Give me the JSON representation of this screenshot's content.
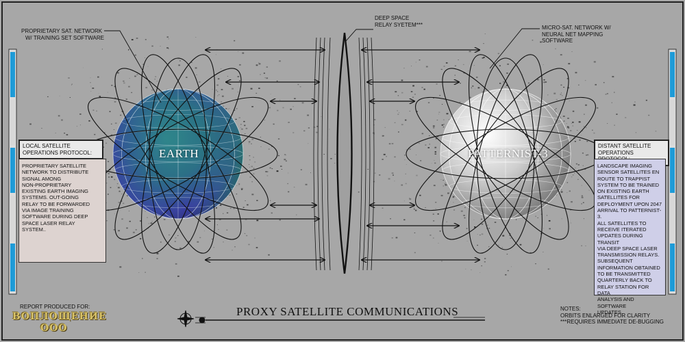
{
  "labels": {
    "proprietary_network": [
      "PROPRIETARY SAT. NETWORK",
      "W/ TRAINING SET SOFTWARE"
    ],
    "relay_system": [
      "DEEP SPACE",
      "RELAY SYETEM***"
    ],
    "micro_network": [
      "MICRO-SAT. NETWORK W/",
      "NEURAL NET MAPPING",
      "SOFTWARE"
    ]
  },
  "planets": {
    "earth": "EARTH",
    "patternist": "PATTERNIST-3"
  },
  "local_panel": {
    "title": [
      "LOCAL SATELLITE",
      "OPERATIONS PROTOCOL:"
    ],
    "body": [
      "PROPRIETARY SATELLITE",
      "NETWORK TO DISTRIBUTE",
      "SIGNAL AMONG",
      "NON-PROPRIETARY",
      "EXISTING EARTH IMAGING",
      "SYSTEMS.  OUT-GOING",
      "RELAY TO BE FORWARDED",
      "VIA IMAGE TRAINING",
      "SOFTWARE DURING DEEP",
      "SPACE LASER RELAY",
      "SYSTEM.."
    ],
    "bg": "#ddd3d0"
  },
  "distant_panel": {
    "title": [
      "DISTANT SATELLITE",
      "OPERATIONS PROTOCOL:"
    ],
    "body": [
      "LANDSCAPE IMAGING",
      "SENSOR SATELLITES EN",
      "ROUTE TO TRAPPIST",
      "SYSTEM TO BE TRAINED",
      "ON EXISTING EARTH",
      "SATELLITES FOR",
      "DEPLOYMENT UPON 2047",
      "ARRIVAL TO PATTERNIST-3.",
      "ALL SATELLITES TO",
      "RECEIVE ITERATED",
      "UPDATES DURING TRANSIT",
      "VIA DEEP SPACE LASER",
      "TRANSMISSION RELAYS.",
      "SUBSEQUENT",
      "INFORMATION OBTAINED",
      "TO BE TRANSMITTED",
      "QUARTERLY BACK TO",
      "RELAY STATION FOR DATA",
      "ANALYSIS AND SOFTWARE",
      "UPDATES."
    ],
    "bg": "#cfcfe8"
  },
  "footer": {
    "report_label": "REPORT PRODUCED FOR:",
    "brand_line1": "ВОПЛОЩЕНИЕ",
    "brand_line2": "ООО",
    "title": "PROXY SATELLITE COMMUNICATIONS",
    "notes": [
      "NOTES:",
      "ORBITS ENLARGED FOR CLARITY",
      "***REQUIRES IMMEDIATE DE-BUGGING"
    ]
  },
  "colors": {
    "background": "#a7a7a7",
    "accent_bar": "#1e9bd7",
    "earth_a": "#3a3fa0",
    "earth_b": "#1f8a6e",
    "brand_gold": "#d8c36a"
  },
  "icons": [
    "compass-rose-icon"
  ]
}
